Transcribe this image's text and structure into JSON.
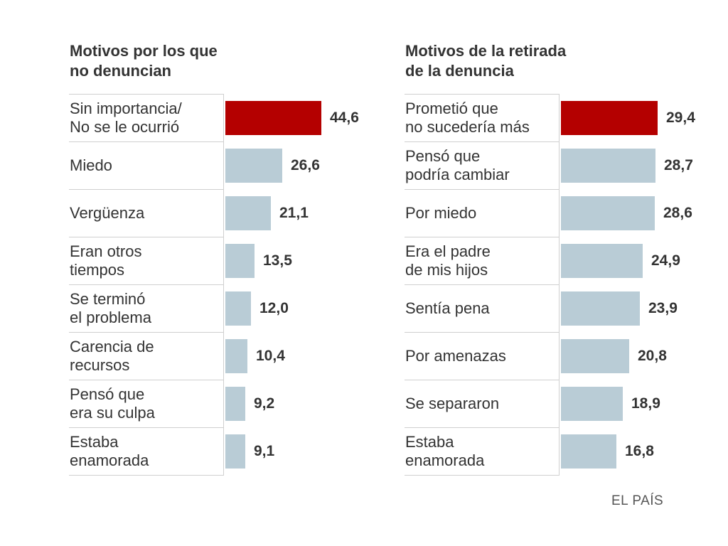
{
  "colors": {
    "highlight": "#b40000",
    "bar": "#b9ccd6",
    "text": "#333333",
    "rule": "#cfcfcf"
  },
  "source": "EL PAÍS",
  "chart_data": [
    {
      "type": "bar",
      "orientation": "horizontal",
      "title": "Motivos por los que\nno denuncian",
      "categories": [
        "Sin importancia/\nNo se le ocurrió",
        "Miedo",
        "Vergüenza",
        "Eran otros\ntiempos",
        "Se terminó\nel problema",
        "Carencia de\nrecursos",
        "Pensó que\nera su culpa",
        "Estaba\nenamorada"
      ],
      "values": [
        44.6,
        26.6,
        21.1,
        13.5,
        12.0,
        10.4,
        9.2,
        9.1
      ],
      "value_labels": [
        "44,6",
        "26,6",
        "21,1",
        "13,5",
        "12,0",
        "10,4",
        "9,2",
        "9,1"
      ],
      "highlight_index": 0,
      "xlim": [
        0,
        45
      ]
    },
    {
      "type": "bar",
      "orientation": "horizontal",
      "title": "Motivos de la retirada\nde la denuncia",
      "categories": [
        "Prometió que\nno sucedería más",
        "Pensó que\npodría cambiar",
        "Por miedo",
        "Era el padre\nde mis hijos",
        "Sentía pena",
        "Por amenazas",
        "Se separaron",
        "Estaba\nenamorada"
      ],
      "values": [
        29.4,
        28.7,
        28.6,
        24.9,
        23.9,
        20.8,
        18.9,
        16.8
      ],
      "value_labels": [
        "29,4",
        "28,7",
        "28,6",
        "24,9",
        "23,9",
        "20,8",
        "18,9",
        "16,8"
      ],
      "highlight_index": 0,
      "xlim": [
        0,
        29.4
      ]
    }
  ]
}
